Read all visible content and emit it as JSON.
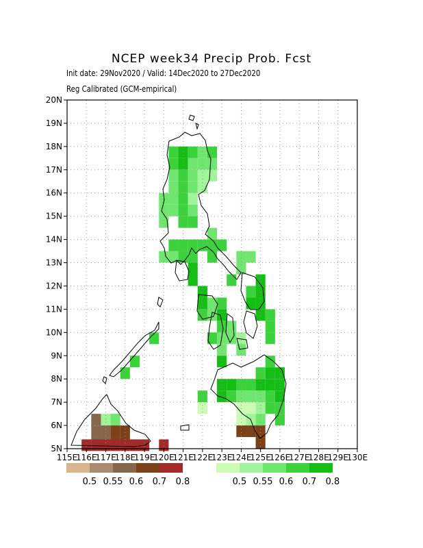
{
  "title": "NCEP week34 Precip Prob. Fcst",
  "subtitle_line1": "Init date: 29Nov2020 / Valid: 14Dec2020 to 27Dec2020",
  "subtitle_line2": "Reg Calibrated (GCM-empirical)",
  "map": {
    "lon_range": [
      115,
      130
    ],
    "lat_range": [
      5,
      20
    ],
    "lat_ticks": [
      "5N",
      "6N",
      "7N",
      "8N",
      "9N",
      "10N",
      "11N",
      "12N",
      "13N",
      "14N",
      "15N",
      "16N",
      "17N",
      "18N",
      "19N",
      "20N"
    ],
    "lon_ticks": [
      "115E",
      "116E",
      "117E",
      "118E",
      "119E",
      "120E",
      "121E",
      "122E",
      "123E",
      "124E",
      "125E",
      "126E",
      "127E",
      "128E",
      "129E",
      "130E"
    ],
    "grid": true,
    "cell_size_deg": 0.5
  },
  "legend": {
    "dry": {
      "labels": [
        "0.5",
        "0.55",
        "0.6",
        "0.7",
        "0.8"
      ],
      "colors": [
        "#d9b68b",
        "#a88a6e",
        "#86664c",
        "#7a4216",
        "#a32a2a"
      ]
    },
    "wet": {
      "labels": [
        "0.5",
        "0.55",
        "0.6",
        "0.7",
        "0.8"
      ],
      "colors": [
        "#ccfcb4",
        "#a2f49a",
        "#70e670",
        "#3cd23c",
        "#14be14"
      ]
    }
  },
  "cells": [
    {
      "lon": 121.0,
      "lat": 17.75,
      "c": "#14be14"
    },
    {
      "lon": 121.0,
      "lat": 17.25,
      "c": "#14be14"
    },
    {
      "lon": 121.0,
      "lat": 16.75,
      "c": "#3cd23c"
    },
    {
      "lon": 121.0,
      "lat": 16.25,
      "c": "#3cd23c"
    },
    {
      "lon": 121.0,
      "lat": 15.75,
      "c": "#3cd23c"
    },
    {
      "lon": 121.0,
      "lat": 15.25,
      "c": "#3cd23c"
    },
    {
      "lon": 121.0,
      "lat": 14.75,
      "c": "#3cd23c"
    },
    {
      "lon": 121.0,
      "lat": 13.75,
      "c": "#3cd23c"
    },
    {
      "lon": 121.0,
      "lat": 13.25,
      "c": "#3cd23c"
    },
    {
      "lon": 121.5,
      "lat": 17.75,
      "c": "#3cd23c"
    },
    {
      "lon": 121.5,
      "lat": 17.25,
      "c": "#70e670"
    },
    {
      "lon": 121.5,
      "lat": 16.75,
      "c": "#70e670"
    },
    {
      "lon": 121.5,
      "lat": 16.25,
      "c": "#70e670"
    },
    {
      "lon": 121.5,
      "lat": 15.75,
      "c": "#a2f49a"
    },
    {
      "lon": 121.5,
      "lat": 15.25,
      "c": "#70e670"
    },
    {
      "lon": 121.5,
      "lat": 14.75,
      "c": "#3cd23c"
    },
    {
      "lon": 121.5,
      "lat": 13.75,
      "c": "#3cd23c"
    },
    {
      "lon": 121.5,
      "lat": 13.25,
      "c": "#3cd23c"
    },
    {
      "lon": 121.5,
      "lat": 12.75,
      "c": "#14be14"
    },
    {
      "lon": 121.5,
      "lat": 12.25,
      "c": "#14be14"
    },
    {
      "lon": 122.0,
      "lat": 17.75,
      "c": "#70e670"
    },
    {
      "lon": 122.0,
      "lat": 17.25,
      "c": "#70e670"
    },
    {
      "lon": 122.0,
      "lat": 16.75,
      "c": "#a2f49a"
    },
    {
      "lon": 122.0,
      "lat": 16.25,
      "c": "#a2f49a"
    },
    {
      "lon": 122.0,
      "lat": 13.75,
      "c": "#3cd23c"
    },
    {
      "lon": 120.5,
      "lat": 17.75,
      "c": "#3cd23c"
    },
    {
      "lon": 120.5,
      "lat": 17.25,
      "c": "#3cd23c"
    },
    {
      "lon": 120.5,
      "lat": 16.75,
      "c": "#70e670"
    },
    {
      "lon": 120.5,
      "lat": 16.25,
      "c": "#70e670"
    },
    {
      "lon": 120.5,
      "lat": 15.75,
      "c": "#70e670"
    },
    {
      "lon": 120.5,
      "lat": 15.25,
      "c": "#70e670"
    },
    {
      "lon": 120.5,
      "lat": 13.75,
      "c": "#3cd23c"
    },
    {
      "lon": 120.5,
      "lat": 13.25,
      "c": "#70e670"
    },
    {
      "lon": 120.0,
      "lat": 15.75,
      "c": "#70e670"
    },
    {
      "lon": 120.0,
      "lat": 15.25,
      "c": "#70e670"
    },
    {
      "lon": 120.0,
      "lat": 14.75,
      "c": "#70e670"
    },
    {
      "lon": 120.0,
      "lat": 13.25,
      "c": "#70e670"
    },
    {
      "lon": 122.5,
      "lat": 17.75,
      "c": "#3cd23c"
    },
    {
      "lon": 122.5,
      "lat": 17.25,
      "c": "#70e670"
    },
    {
      "lon": 122.5,
      "lat": 16.75,
      "c": "#a2f49a"
    },
    {
      "lon": 122.5,
      "lat": 14.25,
      "c": "#70e670"
    },
    {
      "lon": 122.5,
      "lat": 13.75,
      "c": "#3cd23c"
    },
    {
      "lon": 122.5,
      "lat": 13.25,
      "c": "#3cd23c"
    },
    {
      "lon": 123.0,
      "lat": 13.75,
      "c": "#3cd23c"
    },
    {
      "lon": 124.0,
      "lat": 13.25,
      "c": "#70e670"
    },
    {
      "lon": 124.0,
      "lat": 12.75,
      "c": "#70e670"
    },
    {
      "lon": 124.5,
      "lat": 13.25,
      "c": "#70e670"
    },
    {
      "lon": 122.0,
      "lat": 11.25,
      "c": "#14be14"
    },
    {
      "lon": 122.0,
      "lat": 10.75,
      "c": "#3cd23c"
    },
    {
      "lon": 122.0,
      "lat": 11.75,
      "c": "#14be14"
    },
    {
      "lon": 122.5,
      "lat": 11.25,
      "c": "#70e670"
    },
    {
      "lon": 122.5,
      "lat": 10.75,
      "c": "#70e670"
    },
    {
      "lon": 123.0,
      "lat": 11.25,
      "c": "#3cd23c"
    },
    {
      "lon": 123.0,
      "lat": 10.75,
      "c": "#14be14"
    },
    {
      "lon": 123.5,
      "lat": 12.25,
      "c": "#3cd23c"
    },
    {
      "lon": 123.5,
      "lat": 10.25,
      "c": "#70e670"
    },
    {
      "lon": 123.5,
      "lat": 9.75,
      "c": "#70e670"
    },
    {
      "lon": 123.0,
      "lat": 10.25,
      "c": "#3cd23c"
    },
    {
      "lon": 123.0,
      "lat": 9.75,
      "c": "#70e670"
    },
    {
      "lon": 122.5,
      "lat": 9.75,
      "c": "#3cd23c"
    },
    {
      "lon": 123.0,
      "lat": 9.25,
      "c": "#70e670"
    },
    {
      "lon": 123.0,
      "lat": 8.75,
      "c": "#14be14"
    },
    {
      "lon": 124.0,
      "lat": 9.75,
      "c": "#a2f49a"
    },
    {
      "lon": 124.0,
      "lat": 9.25,
      "c": "#70e670"
    },
    {
      "lon": 125.0,
      "lat": 12.25,
      "c": "#14be14"
    },
    {
      "lon": 125.0,
      "lat": 11.75,
      "c": "#14be14"
    },
    {
      "lon": 125.0,
      "lat": 11.25,
      "c": "#14be14"
    },
    {
      "lon": 124.5,
      "lat": 11.75,
      "c": "#3cd23c"
    },
    {
      "lon": 124.5,
      "lat": 11.25,
      "c": "#14be14"
    },
    {
      "lon": 125.0,
      "lat": 10.75,
      "c": "#14be14"
    },
    {
      "lon": 125.5,
      "lat": 10.75,
      "c": "#3cd23c"
    },
    {
      "lon": 125.5,
      "lat": 10.25,
      "c": "#3cd23c"
    },
    {
      "lon": 125.5,
      "lat": 9.75,
      "c": "#3cd23c"
    },
    {
      "lon": 125.5,
      "lat": 8.75,
      "c": "#3cd23c"
    },
    {
      "lon": 126.0,
      "lat": 8.25,
      "c": "#14be14"
    },
    {
      "lon": 125.5,
      "lat": 8.25,
      "c": "#14be14"
    },
    {
      "lon": 125.0,
      "lat": 8.25,
      "c": "#3cd23c"
    },
    {
      "lon": 124.5,
      "lat": 7.75,
      "c": "#3cd23c"
    },
    {
      "lon": 124.0,
      "lat": 7.75,
      "c": "#3cd23c"
    },
    {
      "lon": 123.5,
      "lat": 7.75,
      "c": "#14be14"
    },
    {
      "lon": 123.0,
      "lat": 7.75,
      "c": "#14be14"
    },
    {
      "lon": 123.0,
      "lat": 7.25,
      "c": "#14be14"
    },
    {
      "lon": 123.5,
      "lat": 7.25,
      "c": "#3cd23c"
    },
    {
      "lon": 124.0,
      "lat": 7.25,
      "c": "#70e670"
    },
    {
      "lon": 124.5,
      "lat": 7.25,
      "c": "#70e670"
    },
    {
      "lon": 125.0,
      "lat": 7.75,
      "c": "#14be14"
    },
    {
      "lon": 125.5,
      "lat": 7.75,
      "c": "#14be14"
    },
    {
      "lon": 126.0,
      "lat": 7.75,
      "c": "#14be14"
    },
    {
      "lon": 125.0,
      "lat": 7.25,
      "c": "#70e670"
    },
    {
      "lon": 125.5,
      "lat": 7.25,
      "c": "#3cd23c"
    },
    {
      "lon": 126.0,
      "lat": 7.25,
      "c": "#14be14"
    },
    {
      "lon": 126.0,
      "lat": 6.75,
      "c": "#3cd23c"
    },
    {
      "lon": 126.0,
      "lat": 6.25,
      "c": "#3cd23c"
    },
    {
      "lon": 124.0,
      "lat": 6.75,
      "c": "#ccfcb4"
    },
    {
      "lon": 124.0,
      "lat": 6.25,
      "c": "#ccfcb4"
    },
    {
      "lon": 124.5,
      "lat": 6.75,
      "c": "#ccfcb4"
    },
    {
      "lon": 124.5,
      "lat": 6.25,
      "c": "#a2f49a"
    },
    {
      "lon": 125.0,
      "lat": 6.75,
      "c": "#a2f49a"
    },
    {
      "lon": 125.0,
      "lat": 6.25,
      "c": "#70e670"
    },
    {
      "lon": 125.5,
      "lat": 6.75,
      "c": "#3cd23c"
    },
    {
      "lon": 122.0,
      "lat": 7.25,
      "c": "#3cd23c"
    },
    {
      "lon": 122.0,
      "lat": 6.75,
      "c": "#ccfcb4"
    },
    {
      "lon": 124.0,
      "lat": 5.75,
      "c": "#7a4216"
    },
    {
      "lon": 124.5,
      "lat": 5.75,
      "c": "#7a4216"
    },
    {
      "lon": 125.0,
      "lat": 5.75,
      "c": "#7a4216"
    },
    {
      "lon": 125.0,
      "lat": 5.25,
      "c": "#7a4216"
    },
    {
      "lon": 119.5,
      "lat": 9.75,
      "c": "#3cd23c"
    },
    {
      "lon": 118.5,
      "lat": 8.75,
      "c": "#3cd23c"
    },
    {
      "lon": 118.0,
      "lat": 8.25,
      "c": "#3cd23c"
    },
    {
      "lon": 117.0,
      "lat": 6.25,
      "c": "#a2f49a"
    },
    {
      "lon": 117.5,
      "lat": 6.25,
      "c": "#70e670"
    },
    {
      "lon": 116.5,
      "lat": 6.25,
      "c": "#86664c"
    },
    {
      "lon": 117.0,
      "lat": 5.75,
      "c": "#86664c"
    },
    {
      "lon": 116.5,
      "lat": 5.75,
      "c": "#86664c"
    },
    {
      "lon": 116.5,
      "lat": 5.25,
      "c": "#86664c"
    },
    {
      "lon": 117.0,
      "lat": 5.25,
      "c": "#86664c"
    },
    {
      "lon": 117.5,
      "lat": 5.75,
      "c": "#7a4216"
    },
    {
      "lon": 117.5,
      "lat": 5.25,
      "c": "#7a4216"
    },
    {
      "lon": 118.0,
      "lat": 5.25,
      "c": "#7a4216"
    },
    {
      "lon": 118.0,
      "lat": 5.75,
      "c": "#7a4216"
    },
    {
      "lon": 116.0,
      "lat": 5.15,
      "c": "#a32a2a"
    },
    {
      "lon": 116.5,
      "lat": 5.15,
      "c": "#a32a2a"
    },
    {
      "lon": 117.0,
      "lat": 5.15,
      "c": "#a32a2a"
    },
    {
      "lon": 117.5,
      "lat": 5.15,
      "c": "#a32a2a"
    },
    {
      "lon": 118.0,
      "lat": 5.15,
      "c": "#a32a2a"
    },
    {
      "lon": 118.5,
      "lat": 5.15,
      "c": "#a32a2a"
    },
    {
      "lon": 119.0,
      "lat": 5.15,
      "c": "#a32a2a"
    },
    {
      "lon": 120.0,
      "lat": 5.15,
      "c": "#a32a2a"
    }
  ]
}
